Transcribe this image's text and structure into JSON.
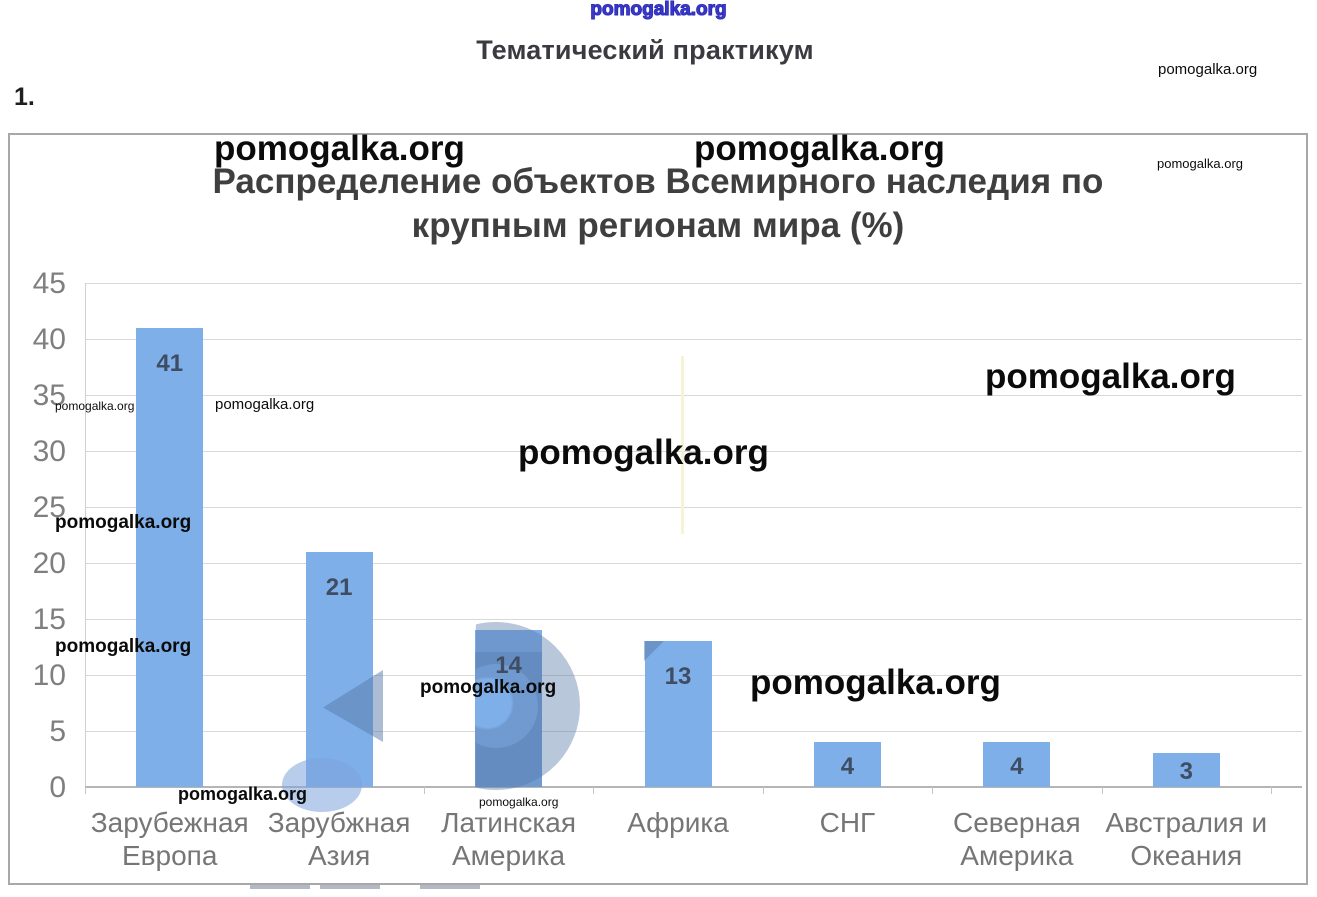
{
  "watermark": {
    "text": "pomogalka.org"
  },
  "header": {
    "number": "1.",
    "title": "Тематический практикум"
  },
  "chart_data": {
    "type": "bar",
    "title": "Распределение объектов Всемирного наследия по крупным регионам мира (%)",
    "title_lines": [
      "Распределение объектов Всемирного наследия по",
      "крупным регионам мира (%)"
    ],
    "categories": [
      "Зарубежная Европа",
      "Зарубжная Азия",
      "Латинская Америка",
      "Африка",
      "СНГ",
      "Северная Америка",
      "Австралия и Океания"
    ],
    "category_lines": [
      [
        "Зарубежная",
        "Европа"
      ],
      [
        "Зарубжная",
        "Азия"
      ],
      [
        "Латинская",
        "Америка"
      ],
      [
        "Африка"
      ],
      [
        "СНГ"
      ],
      [
        "Северная",
        "Америка"
      ],
      [
        "Австралия и",
        "Океания"
      ]
    ],
    "values": [
      41,
      21,
      14,
      13,
      4,
      4,
      3
    ],
    "y_ticks": [
      0,
      5,
      10,
      15,
      20,
      25,
      30,
      35,
      40,
      45
    ],
    "ylim": [
      0,
      45
    ],
    "xlabel": "",
    "ylabel": "",
    "grid": true,
    "legend_position": "none",
    "bar_color": "#7fafe9",
    "value_label_color": "#3f4d63",
    "axis_label_color": "#7f7f7f",
    "title_color": "#3f3f3f"
  }
}
